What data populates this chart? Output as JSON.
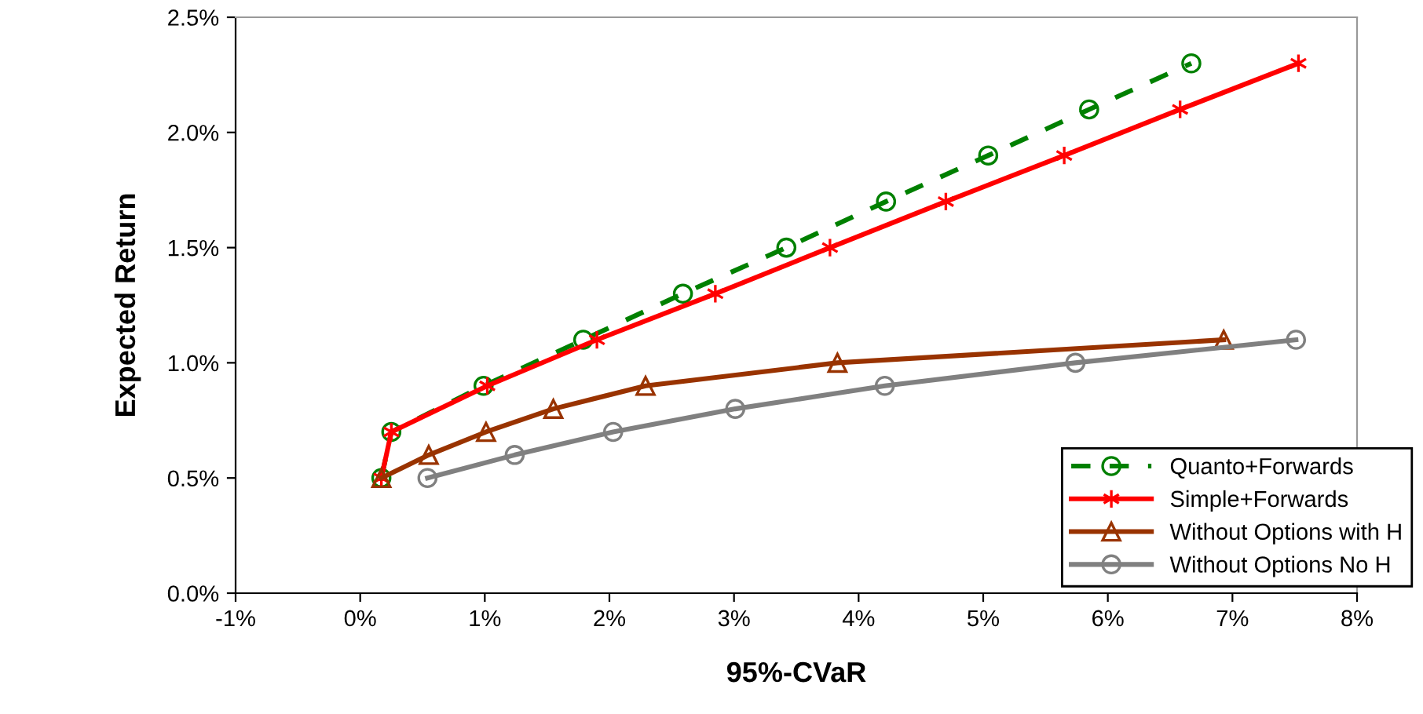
{
  "chart_data": {
    "type": "line",
    "xlabel": "95%-CVaR",
    "ylabel": "Expected Return",
    "xlim": [
      -1,
      8
    ],
    "xticks": [
      {
        "value": -1,
        "label": "-1%"
      },
      {
        "value": 0,
        "label": "0%"
      },
      {
        "value": 1,
        "label": "1%"
      },
      {
        "value": 2,
        "label": "2%"
      },
      {
        "value": 3,
        "label": "3%"
      },
      {
        "value": 4,
        "label": "4%"
      },
      {
        "value": 5,
        "label": "5%"
      },
      {
        "value": 6,
        "label": "6%"
      },
      {
        "value": 7,
        "label": "7%"
      },
      {
        "value": 8,
        "label": "8%"
      }
    ],
    "ylim": [
      0,
      2.5
    ],
    "yticks": [
      {
        "value": 0,
        "label": "0.0%"
      },
      {
        "value": 0.5,
        "label": "0.5%"
      },
      {
        "value": 1,
        "label": "1.0%"
      },
      {
        "value": 1.5,
        "label": "1.5%"
      },
      {
        "value": 2,
        "label": "2.0%"
      },
      {
        "value": 2.5,
        "label": "2.5%"
      }
    ],
    "grid": false,
    "legend": "bottom right",
    "series": [
      {
        "name": "Quanto+Forwards",
        "color": "#008000",
        "marker": "circle",
        "line_style": "dashed",
        "x": [
          0.17,
          0.25,
          0.99,
          1.79,
          2.59,
          3.42,
          4.22,
          5.04,
          5.85,
          6.67
        ],
        "values": [
          0.5,
          0.7,
          0.9,
          1.1,
          1.3,
          1.5,
          1.7,
          1.9,
          2.1,
          2.3
        ]
      },
      {
        "name": "Simple+Forwards",
        "color": "#ff0000",
        "marker": "cross",
        "line_style": "solid",
        "x": [
          0.17,
          0.25,
          1.02,
          1.9,
          2.85,
          3.77,
          4.7,
          5.65,
          6.58,
          7.53
        ],
        "values": [
          0.5,
          0.7,
          0.9,
          1.1,
          1.3,
          1.5,
          1.7,
          1.9,
          2.1,
          2.3
        ]
      },
      {
        "name": "Without Options with H",
        "color": "#993300",
        "marker": "triangle",
        "line_style": "solid",
        "x": [
          0.17,
          0.55,
          1.01,
          1.55,
          2.29,
          3.83,
          6.93
        ],
        "values": [
          0.5,
          0.6,
          0.7,
          0.8,
          0.9,
          1.0,
          1.1
        ]
      },
      {
        "name": "Without Options No H",
        "color": "#808080",
        "marker": "circle",
        "line_style": "solid",
        "x": [
          0.54,
          1.24,
          2.03,
          3.01,
          4.21,
          5.74,
          7.51
        ],
        "values": [
          0.5,
          0.6,
          0.7,
          0.8,
          0.9,
          1.0,
          1.1
        ]
      }
    ]
  }
}
